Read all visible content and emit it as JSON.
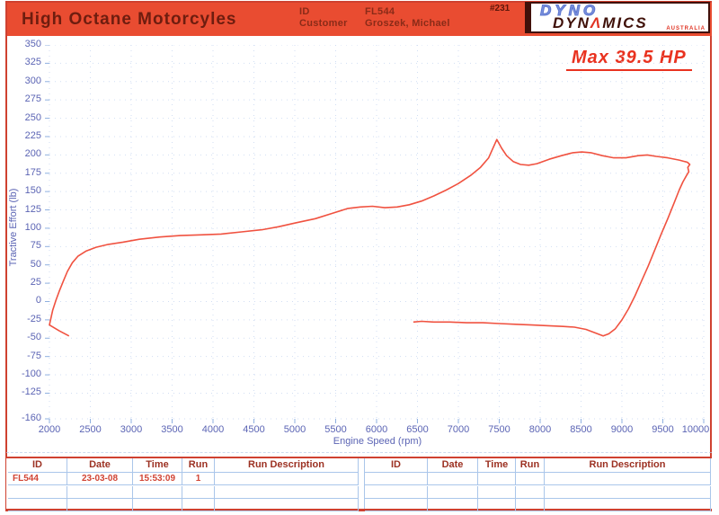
{
  "page": {
    "border_color": "#cf4130",
    "background": "#ffffff"
  },
  "header": {
    "shop_name": "High Octane Motorcyles",
    "id_label": "ID",
    "id_value": "FL544",
    "customer_label": "Customer",
    "customer_value": "Groszek, Michael",
    "sheet_number": "#231",
    "banner_color": "#e94c31"
  },
  "logo": {
    "word1": "DYNO",
    "word2_pre": "DYN",
    "word2_a": "Λ",
    "word2_post": "MICS",
    "tagline": "AUSTRALIA",
    "blue": "#6d85d8",
    "maroon": "#40100a",
    "red": "#e03424"
  },
  "annotation": {
    "max_power": "Max 39.5 HP",
    "color": "#e9321f"
  },
  "chart_data": {
    "type": "line",
    "title": "",
    "xlabel": "Engine Speed (rpm)",
    "ylabel": "Tractive Effort (lb)",
    "xlim": [
      2000,
      10000
    ],
    "ylim": [
      -160,
      350
    ],
    "x_ticks": [
      2000,
      2500,
      3000,
      3500,
      4000,
      4500,
      5000,
      5500,
      6000,
      6500,
      7000,
      7500,
      8000,
      8500,
      9000,
      9500,
      10000
    ],
    "y_ticks": [
      350,
      325,
      300,
      275,
      250,
      225,
      200,
      175,
      150,
      125,
      100,
      75,
      50,
      25,
      0,
      -25,
      -50,
      -75,
      -100,
      -125,
      -160
    ],
    "grid": {
      "style": "dotted",
      "color": "#c9d9f2"
    },
    "axis_text_color": "#5b64b4",
    "tick_color": "#8fb0e0",
    "max_power_hp": 39.5,
    "peak_tractive_effort_lb": 221,
    "peak_rpm": 7470,
    "series": [
      {
        "name": "run-1-trace",
        "color": "#f05240",
        "points": [
          [
            2240,
            -47
          ],
          [
            2120,
            -40
          ],
          [
            2000,
            -32
          ],
          [
            2040,
            -12
          ],
          [
            2080,
            2
          ],
          [
            2120,
            14
          ],
          [
            2170,
            28
          ],
          [
            2220,
            41
          ],
          [
            2280,
            53
          ],
          [
            2350,
            62
          ],
          [
            2450,
            69
          ],
          [
            2570,
            74
          ],
          [
            2720,
            78
          ],
          [
            2900,
            81
          ],
          [
            3100,
            85
          ],
          [
            3350,
            88
          ],
          [
            3600,
            90
          ],
          [
            3850,
            91
          ],
          [
            4100,
            92
          ],
          [
            4350,
            95
          ],
          [
            4600,
            98
          ],
          [
            4800,
            102
          ],
          [
            5000,
            107
          ],
          [
            5250,
            113
          ],
          [
            5450,
            120
          ],
          [
            5650,
            127
          ],
          [
            5800,
            129
          ],
          [
            5950,
            130
          ],
          [
            6100,
            128
          ],
          [
            6250,
            129
          ],
          [
            6400,
            132
          ],
          [
            6550,
            137
          ],
          [
            6700,
            144
          ],
          [
            6850,
            152
          ],
          [
            7000,
            161
          ],
          [
            7150,
            172
          ],
          [
            7270,
            183
          ],
          [
            7370,
            196
          ],
          [
            7470,
            221
          ],
          [
            7530,
            209
          ],
          [
            7590,
            199
          ],
          [
            7670,
            191
          ],
          [
            7760,
            187
          ],
          [
            7860,
            186
          ],
          [
            7960,
            188
          ],
          [
            8110,
            194
          ],
          [
            8260,
            199
          ],
          [
            8400,
            203
          ],
          [
            8510,
            204
          ],
          [
            8620,
            203
          ],
          [
            8760,
            199
          ],
          [
            8900,
            196
          ],
          [
            9050,
            196
          ],
          [
            9200,
            199
          ],
          [
            9310,
            200
          ],
          [
            9420,
            198
          ],
          [
            9560,
            196
          ],
          [
            9700,
            193
          ],
          [
            9800,
            190
          ],
          [
            9830,
            187
          ],
          [
            9805,
            183
          ],
          [
            9818,
            177
          ],
          [
            9790,
            172
          ],
          [
            9745,
            163
          ],
          [
            9700,
            152
          ],
          [
            9640,
            135
          ],
          [
            9560,
            113
          ],
          [
            9480,
            92
          ],
          [
            9400,
            70
          ],
          [
            9320,
            48
          ],
          [
            9240,
            28
          ],
          [
            9160,
            8
          ],
          [
            9080,
            -10
          ],
          [
            9000,
            -25
          ],
          [
            8920,
            -37
          ],
          [
            8840,
            -44
          ],
          [
            8770,
            -47
          ],
          [
            8680,
            -43
          ],
          [
            8560,
            -38
          ],
          [
            8420,
            -35
          ],
          [
            8280,
            -34
          ],
          [
            8100,
            -33
          ],
          [
            7900,
            -32
          ],
          [
            7700,
            -31
          ],
          [
            7500,
            -30
          ],
          [
            7300,
            -29
          ],
          [
            7100,
            -29
          ],
          [
            6900,
            -28
          ],
          [
            6700,
            -28
          ],
          [
            6550,
            -27
          ],
          [
            6450,
            -28
          ]
        ]
      }
    ]
  },
  "table": {
    "headers": [
      "ID",
      "Date",
      "Time",
      "Run",
      "Run Description"
    ],
    "left_rows": [
      [
        "FL544",
        "23-03-08",
        "15:53:09",
        "1",
        ""
      ],
      [
        "",
        "",
        "",
        "",
        ""
      ],
      [
        "",
        "",
        "",
        "",
        ""
      ]
    ],
    "right_rows": [
      [
        "",
        "",
        "",
        "",
        ""
      ],
      [
        "",
        "",
        "",
        "",
        ""
      ],
      [
        "",
        "",
        "",
        "",
        ""
      ]
    ]
  }
}
